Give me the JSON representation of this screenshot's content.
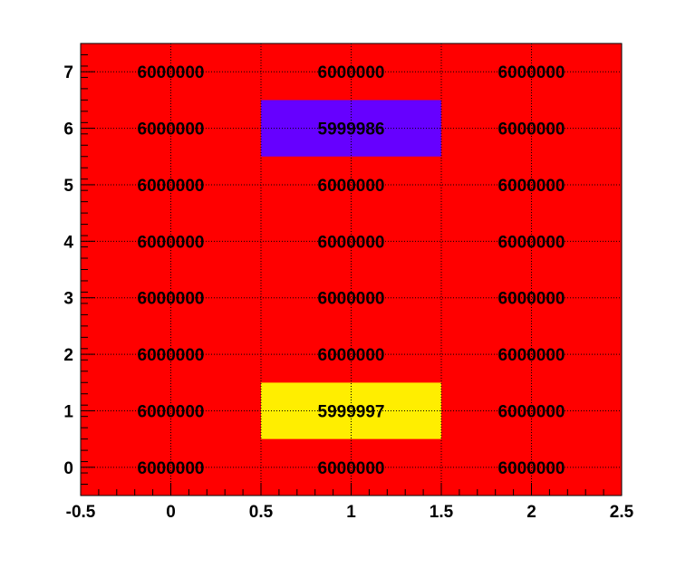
{
  "chart_data": {
    "type": "heatmap",
    "title": "",
    "xlabel": "",
    "ylabel": "",
    "xlim": [
      -0.5,
      2.5
    ],
    "ylim": [
      -0.5,
      7.5
    ],
    "x_ticks": [
      -0.5,
      0,
      0.5,
      1,
      1.5,
      2,
      2.5
    ],
    "x_tick_labels": [
      "-0.5",
      "0",
      "0.5",
      "1",
      "1.5",
      "2",
      "2.5"
    ],
    "y_ticks": [
      0,
      1,
      2,
      3,
      4,
      5,
      6,
      7
    ],
    "y_tick_labels": [
      "0",
      "1",
      "2",
      "3",
      "4",
      "5",
      "6",
      "7"
    ],
    "grid": true,
    "x": [
      0,
      1,
      2
    ],
    "y": [
      0,
      1,
      2,
      3,
      4,
      5,
      6,
      7
    ],
    "values": [
      [
        6000000,
        6000000,
        6000000
      ],
      [
        6000000,
        5999997,
        6000000
      ],
      [
        6000000,
        6000000,
        6000000
      ],
      [
        6000000,
        6000000,
        6000000
      ],
      [
        6000000,
        6000000,
        6000000
      ],
      [
        6000000,
        6000000,
        6000000
      ],
      [
        6000000,
        5999986,
        6000000
      ],
      [
        6000000,
        6000000,
        6000000
      ]
    ],
    "cell_labels": [
      [
        "6000000",
        "6000000",
        "6000000"
      ],
      [
        "6000000",
        "5999997",
        "6000000"
      ],
      [
        "6000000",
        "6000000",
        "6000000"
      ],
      [
        "6000000",
        "6000000",
        "6000000"
      ],
      [
        "6000000",
        "6000000",
        "6000000"
      ],
      [
        "6000000",
        "6000000",
        "6000000"
      ],
      [
        "6000000",
        "5999986",
        "6000000"
      ],
      [
        "6000000",
        "6000000",
        "6000000"
      ]
    ],
    "color_map": [
      {
        "value": 6000000,
        "color": "#ff0000"
      },
      {
        "value": 5999997,
        "color": "#ffee00"
      },
      {
        "value": 5999986,
        "color": "#6600ff"
      }
    ]
  }
}
